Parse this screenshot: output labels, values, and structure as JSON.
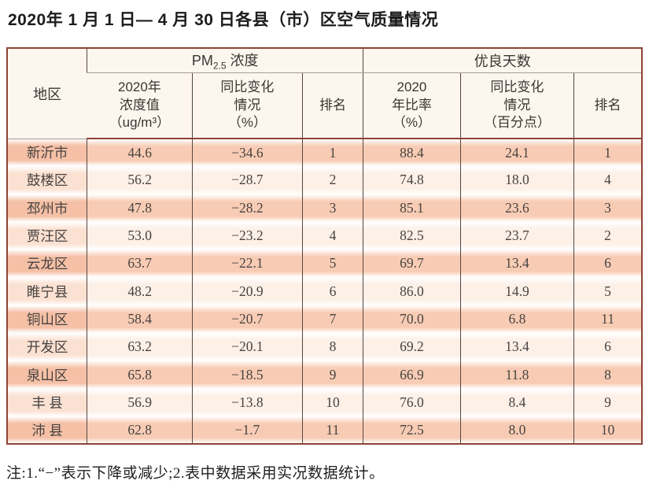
{
  "page": {
    "title": "2020年 1 月 1 日— 4 月 30 日各县（市）区空气质量情况",
    "footnote": "注:1.“−”表示下降或减少;2.表中数据采用实况数据统计。"
  },
  "table": {
    "header": {
      "region": "地区",
      "pm_group": {
        "base": "PM",
        "sub": "2.5",
        "rest": " 浓度"
      },
      "good_group": "优良天数",
      "sub_headers": [
        "2020年\n浓度值\n（ug/m³）",
        "同比变化\n情况\n（%）",
        "排名",
        "2020\n年比率\n（%）",
        "同比变化\n情况\n（百分点）",
        "排名"
      ]
    },
    "rows": [
      [
        "新沂市",
        "44.6",
        "−34.6",
        "1",
        "88.4",
        "24.1",
        "1"
      ],
      [
        "鼓楼区",
        "56.2",
        "−28.7",
        "2",
        "74.8",
        "18.0",
        "4"
      ],
      [
        "邳州市",
        "47.8",
        "−28.2",
        "3",
        "85.1",
        "23.6",
        "3"
      ],
      [
        "贾汪区",
        "53.0",
        "−23.2",
        "4",
        "82.5",
        "23.7",
        "2"
      ],
      [
        "云龙区",
        "63.7",
        "−22.1",
        "5",
        "69.7",
        "13.4",
        "6"
      ],
      [
        "睢宁县",
        "48.2",
        "−20.9",
        "6",
        "86.0",
        "14.9",
        "5"
      ],
      [
        "铜山区",
        "58.4",
        "−20.7",
        "7",
        "70.0",
        "6.8",
        "11"
      ],
      [
        "开发区",
        "63.2",
        "−20.1",
        "8",
        "69.2",
        "13.4",
        "6"
      ],
      [
        "泉山区",
        "65.8",
        "−18.5",
        "9",
        "66.9",
        "11.8",
        "8"
      ],
      [
        "丰 县",
        "56.9",
        "−13.8",
        "10",
        "76.0",
        "8.4",
        "9"
      ],
      [
        "沛 县",
        "62.8",
        "−1.7",
        "11",
        "72.5",
        "8.0",
        "10"
      ]
    ]
  },
  "colors": {
    "border-outer": "#8e4436",
    "grid-line": "#564540",
    "header-bg": "#fdf6ee",
    "row-odd": "#f8ccb4",
    "row-even": "#fdf0e7",
    "region-odd": "#f5c0a6",
    "region-even": "#fbe1d2",
    "text": "#3f3b39"
  }
}
